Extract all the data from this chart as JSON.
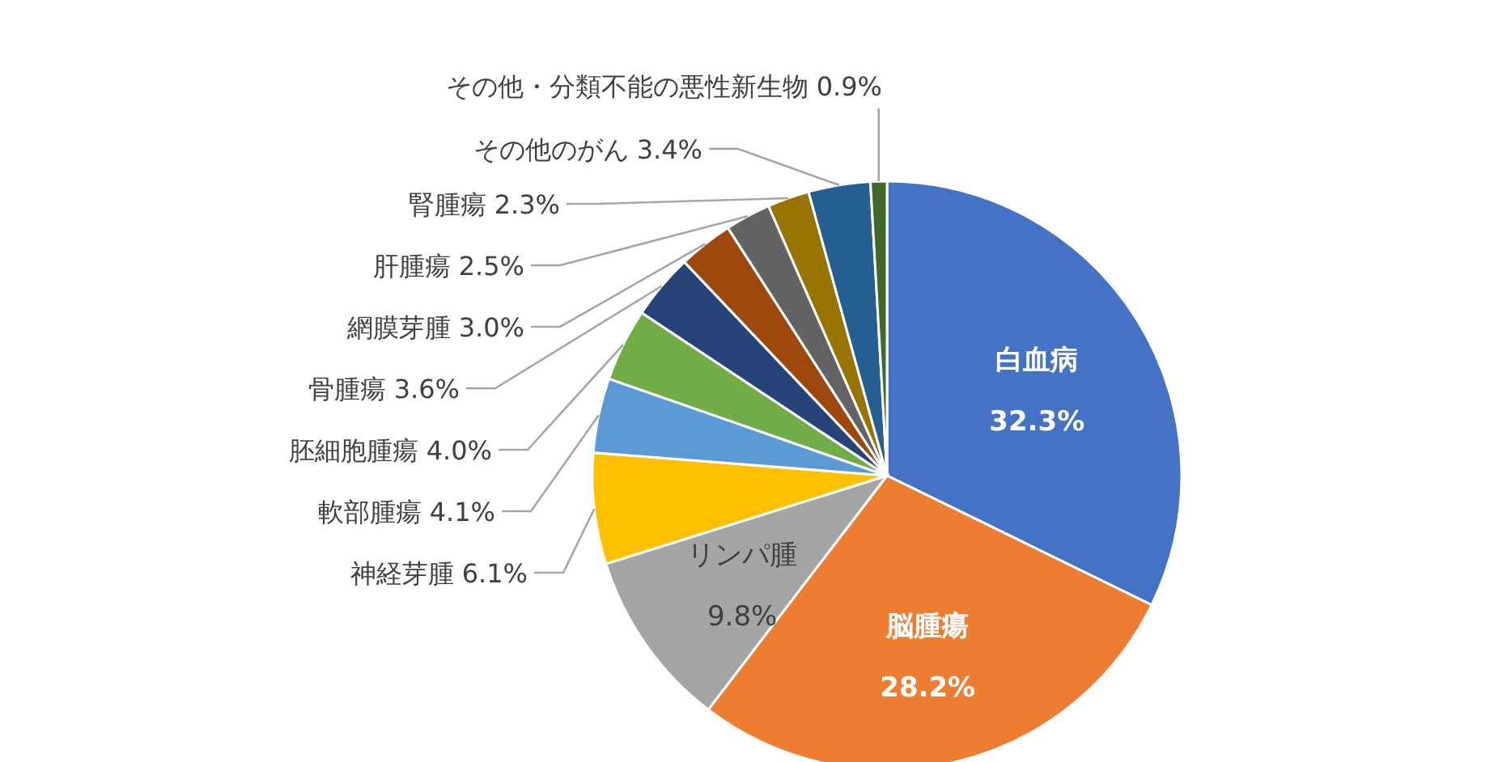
{
  "chart_data": {
    "type": "pie",
    "categories": [
      "白血病",
      "脳腫瘍",
      "リンパ腫",
      "神経芽腫",
      "軟部腫瘍",
      "胚細胞腫瘍",
      "骨腫瘍",
      "網膜芽腫",
      "肝腫瘍",
      "腎腫瘍",
      "その他のがん",
      "その他・分類不能の悪性新生物"
    ],
    "values": [
      32.3,
      28.2,
      9.8,
      6.1,
      4.1,
      4.0,
      3.6,
      3.0,
      2.5,
      2.3,
      3.4,
      0.9
    ],
    "value_labels": [
      "32.3%",
      "28.2%",
      "9.8%",
      "6.1%",
      "4.1%",
      "4.0%",
      "3.6%",
      "3.0%",
      "2.5%",
      "2.3%",
      "3.4%",
      "0.9%"
    ],
    "colors": [
      "#4472c4",
      "#ed7d31",
      "#a5a5a5",
      "#ffc000",
      "#5b9bd5",
      "#70ad47",
      "#264478",
      "#9e480e",
      "#636363",
      "#997300",
      "#255e91",
      "#43682b"
    ],
    "legend": false
  }
}
